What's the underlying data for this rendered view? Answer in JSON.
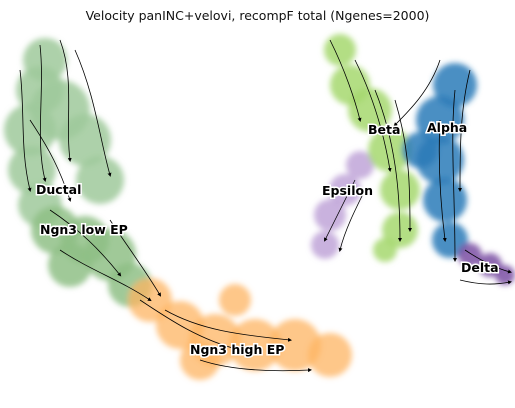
{
  "chart_data": {
    "type": "scatter",
    "title": "Velocity panINC+velovi, recompF total (Ngenes=2000)",
    "xlabel": "",
    "ylabel": "",
    "axes_visible": false,
    "grid": false,
    "legend": "none (labels drawn on data)",
    "overlay": "velocity streamlines with arrows (black)",
    "clusters": [
      {
        "label": "Ductal",
        "color": "#9fc99b"
      },
      {
        "label": "Ngn3 low EP",
        "color": "#8fbf86"
      },
      {
        "label": "Ngn3 high EP",
        "color": "#fdb462"
      },
      {
        "label": "Epsilon",
        "color": "#bfa5d8"
      },
      {
        "label": "Beta",
        "color": "#a6d86f"
      },
      {
        "label": "Alpha",
        "color": "#2b7bb9"
      },
      {
        "label": "Delta",
        "color": "#7b4fa3"
      }
    ]
  }
}
